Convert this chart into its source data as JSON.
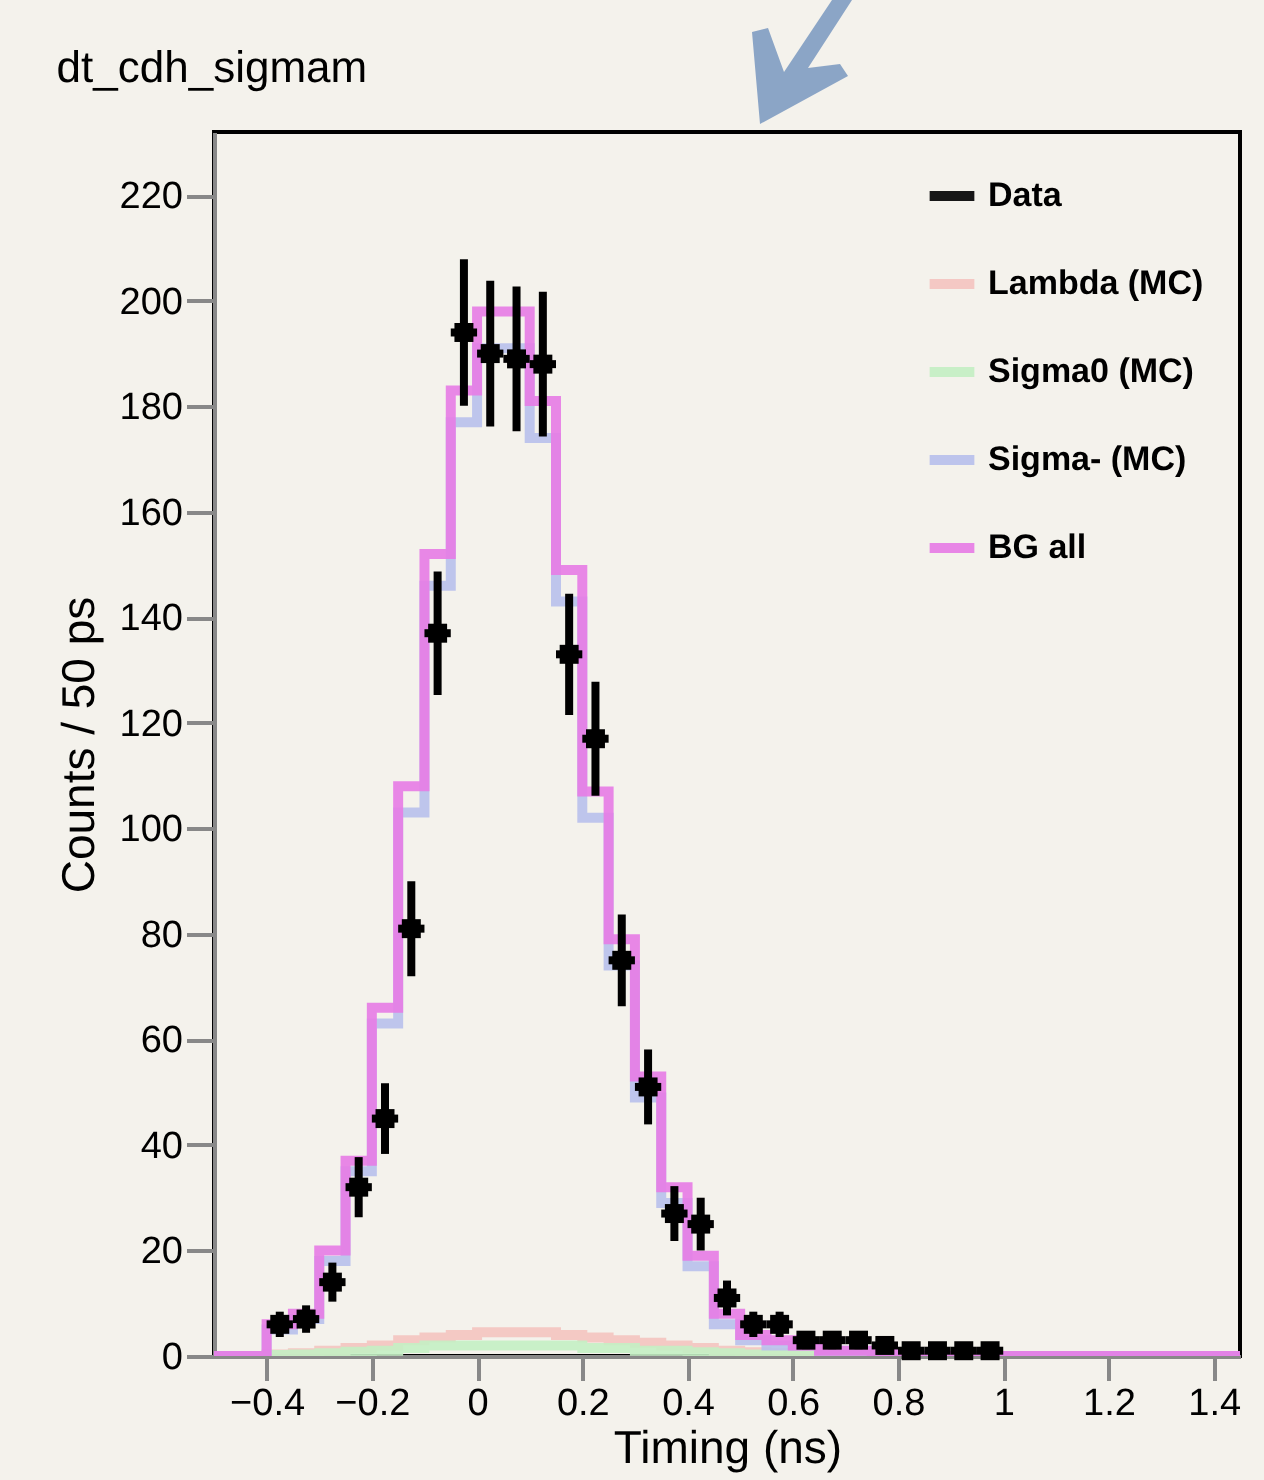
{
  "chart_data": {
    "type": "histogram",
    "title": "dt_cdh_sigmam",
    "xlabel": "Timing (ns)",
    "ylabel": "Counts / 50 ps",
    "bins": [
      -0.5,
      -0.45,
      -0.4,
      -0.35,
      -0.3,
      -0.25,
      -0.2,
      -0.15,
      -0.1,
      -0.05,
      0,
      0.05,
      0.1,
      0.15,
      0.2,
      0.25,
      0.3,
      0.35,
      0.4,
      0.45,
      0.5,
      0.55,
      0.6,
      0.65,
      0.7,
      0.75,
      0.8,
      0.85,
      0.9,
      0.95,
      1,
      1.05,
      1.1,
      1.15,
      1.2,
      1.25,
      1.3,
      1.35,
      1.4,
      1.45
    ],
    "series": [
      {
        "name": "Data",
        "type": "scatter",
        "color": "#000000",
        "x": [
          -0.375,
          -0.325,
          -0.275,
          -0.225,
          -0.175,
          -0.125,
          -0.075,
          -0.025,
          0.025,
          0.075,
          0.125,
          0.175,
          0.225,
          0.275,
          0.325,
          0.375,
          0.425,
          0.475,
          0.525,
          0.575,
          0.625,
          0.675,
          0.725,
          0.775,
          0.825,
          0.875,
          0.925,
          0.975
        ],
        "values": [
          6,
          7,
          14,
          32,
          45,
          81,
          137,
          194,
          190,
          189,
          188,
          133,
          117,
          75,
          51,
          27,
          25,
          11,
          6,
          6,
          3,
          3,
          3,
          2,
          1,
          1,
          1,
          1
        ],
        "errors": [
          2.4,
          2.6,
          3.7,
          5.7,
          6.7,
          9,
          11.7,
          13.9,
          13.8,
          13.7,
          13.7,
          11.5,
          10.8,
          8.7,
          7.1,
          5.2,
          5,
          3.3,
          2.4,
          2.4,
          1.7,
          1.7,
          1.7,
          1.4,
          1,
          1,
          1,
          1
        ],
        "xerrors": [
          0.025,
          0.025,
          0.025,
          0.025,
          0.025,
          0.025,
          0.025,
          0.025,
          0.025,
          0.025,
          0.025,
          0.025,
          0.025,
          0.025,
          0.025,
          0.025,
          0.025,
          0.025,
          0.025,
          0.025,
          0.025,
          0.025,
          0.025,
          0.025,
          0.025,
          0.025,
          0.025,
          0.025
        ]
      },
      {
        "name": "Lambda (MC)",
        "color": "#f4c4c0",
        "values": [
          0,
          0,
          0.3,
          0.5,
          1,
          1.5,
          2,
          3,
          3.5,
          4,
          4.5,
          4.5,
          4.5,
          4,
          3.5,
          3,
          2.5,
          2,
          1.5,
          1,
          0.7,
          0.5,
          0.3,
          0.2,
          0.1,
          0,
          0,
          0,
          0,
          0,
          0,
          0,
          0,
          0,
          0,
          0,
          0,
          0,
          0
        ]
      },
      {
        "name": "Sigma0 (MC)",
        "color": "#c4efc4",
        "values": [
          0,
          0,
          0.2,
          0.3,
          0.5,
          0.8,
          1,
          1.5,
          2,
          2,
          2,
          2,
          2,
          2,
          1.5,
          1.5,
          1,
          1,
          0.7,
          0.5,
          0.3,
          0.2,
          0.1,
          0,
          0,
          0,
          0,
          0,
          0,
          0,
          0,
          0,
          0,
          0,
          0,
          0,
          0,
          0,
          0
        ]
      },
      {
        "name": "Sigma- (MC)",
        "color": "#b8c0ec",
        "values": [
          0,
          0,
          5,
          7,
          18,
          35,
          63,
          103,
          146,
          177,
          191,
          191,
          174,
          143,
          102,
          74,
          49,
          29,
          17,
          6,
          3,
          2,
          2,
          1,
          1,
          0.5,
          0,
          0,
          0,
          0,
          0,
          0,
          0,
          0,
          0,
          0,
          0,
          0,
          0
        ]
      },
      {
        "name": "BG all",
        "color": "#e77be6",
        "values": [
          0,
          0,
          6,
          8,
          20,
          37,
          66,
          108,
          152,
          183,
          198,
          198,
          181,
          149,
          107,
          79,
          53,
          32,
          19,
          8,
          4,
          3,
          2,
          1,
          1,
          0.5,
          0,
          0,
          0,
          0,
          0,
          0,
          0,
          0,
          0,
          0,
          0,
          0,
          0
        ]
      }
    ],
    "xlim": [
      -0.5,
      1.45
    ],
    "xticks": [
      -0.4,
      -0.2,
      0,
      0.2,
      0.4,
      0.6,
      0.8,
      1,
      1.2,
      1.4
    ],
    "ylim": [
      0,
      232
    ],
    "yticks": [
      0,
      20,
      40,
      60,
      80,
      100,
      120,
      140,
      160,
      180,
      200,
      220
    ],
    "legend": "top right",
    "grid": false,
    "marker": "square"
  }
}
